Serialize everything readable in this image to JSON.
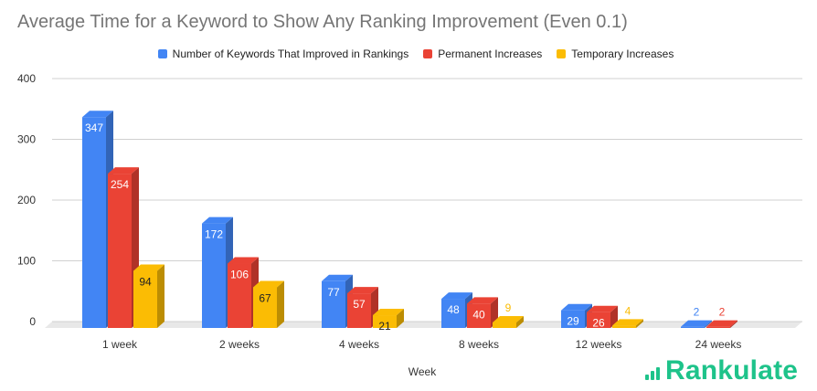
{
  "chart_data": {
    "type": "bar",
    "title": "Average Time for a Keyword to Show Any Ranking Improvement (Even 0.1)",
    "xlabel": "Week",
    "ylabel": "",
    "categories": [
      "1 week",
      "2 weeks",
      "4 weeks",
      "8 weeks",
      "12 weeks",
      "24 weeks"
    ],
    "series": [
      {
        "name": "Number of Keywords That Improved in Rankings",
        "color": "#4285f4",
        "values": [
          347,
          172,
          77,
          48,
          29,
          2
        ]
      },
      {
        "name": "Permanent Increases",
        "color": "#ea4335",
        "values": [
          254,
          106,
          57,
          40,
          26,
          2
        ]
      },
      {
        "name": "Temporary Increases",
        "color": "#fbbc04",
        "values": [
          94,
          67,
          21,
          9,
          4,
          0
        ]
      }
    ],
    "ylim": [
      0,
      400
    ],
    "yticks": [
      0,
      100,
      200,
      300,
      400
    ],
    "grid": true,
    "legend_position": "top",
    "style": "3d"
  },
  "brand": {
    "name": "Rankulate",
    "color": "#1ec38a",
    "icon": "bar-chart-icon"
  }
}
